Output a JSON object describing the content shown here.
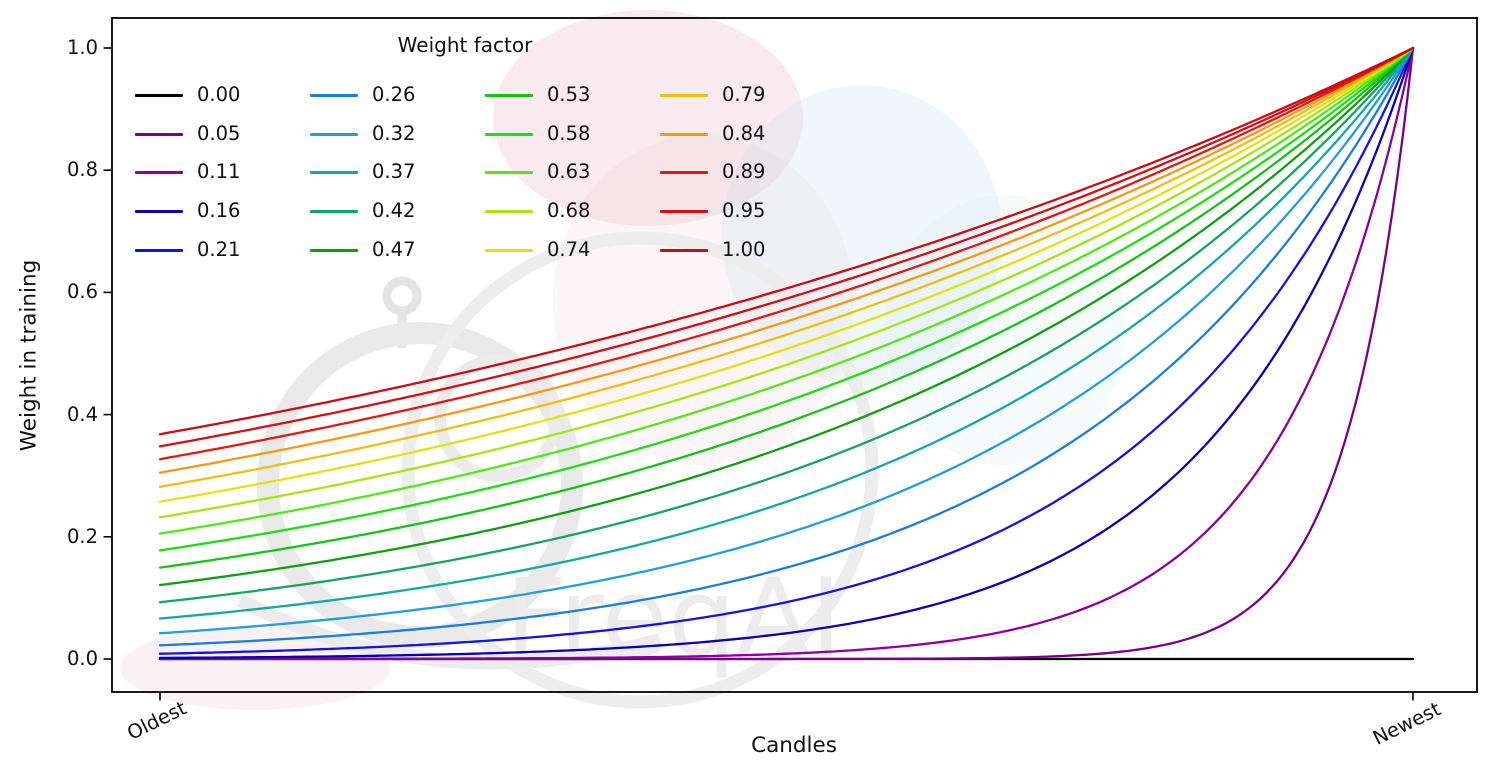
{
  "figure": {
    "watermark": {
      "text": "FreqAI"
    },
    "legend": {
      "title": "Weight factor"
    },
    "y_axis": {
      "label": "Weight in training",
      "ticks": [
        "0.0",
        "0.2",
        "0.4",
        "0.6",
        "0.8",
        "1.0"
      ],
      "tick_values": [
        0.0,
        0.2,
        0.4,
        0.6,
        0.8,
        1.0
      ]
    },
    "x_axis": {
      "label": "Candles",
      "ticks": [
        "Oldest",
        "Newest"
      ]
    }
  },
  "chart_data": {
    "type": "line",
    "title": "",
    "xlabel": "Candles",
    "ylabel": "Weight in training",
    "x_tick_labels": [
      "Oldest",
      "Newest"
    ],
    "x_range": [
      0,
      1
    ],
    "ylim": [
      -0.05,
      1.05
    ],
    "yticks": [
      0.0,
      0.2,
      0.4,
      0.6,
      0.8,
      1.0
    ],
    "grid": false,
    "legend_title": "Weight factor",
    "legend_position": "upper left",
    "legend_columns": 4,
    "formula": "weight(x) = exp(-(1 - x) / weight_factor); x=0 oldest candle, x=1 newest candle; weight_factor=0 gives flat 0 weight",
    "endpoint_values_at_oldest": [
      0.0,
      0.0,
      0.0001,
      0.002,
      0.009,
      0.022,
      0.042,
      0.066,
      0.093,
      0.121,
      0.15,
      0.178,
      0.206,
      0.232,
      0.258,
      0.282,
      0.305,
      0.327,
      0.348,
      0.368
    ],
    "endpoint_value_at_newest": 1.0,
    "series": [
      {
        "name": "0.00",
        "weight_factor": 0.0,
        "color": "#000000"
      },
      {
        "name": "0.05",
        "weight_factor": 0.05263,
        "color": "#7a008b"
      },
      {
        "name": "0.11",
        "weight_factor": 0.10526,
        "color": "#8c009e"
      },
      {
        "name": "0.16",
        "weight_factor": 0.15789,
        "color": "#0d00b0"
      },
      {
        "name": "0.21",
        "weight_factor": 0.21053,
        "color": "#1414dd"
      },
      {
        "name": "0.26",
        "weight_factor": 0.26316,
        "color": "#1b7edb"
      },
      {
        "name": "0.32",
        "weight_factor": 0.31579,
        "color": "#229edb"
      },
      {
        "name": "0.37",
        "weight_factor": 0.36842,
        "color": "#12a9a4"
      },
      {
        "name": "0.42",
        "weight_factor": 0.42105,
        "color": "#16a55c"
      },
      {
        "name": "0.47",
        "weight_factor": 0.47368,
        "color": "#0da00d"
      },
      {
        "name": "0.53",
        "weight_factor": 0.52632,
        "color": "#17c217"
      },
      {
        "name": "0.58",
        "weight_factor": 0.57895,
        "color": "#1edd10"
      },
      {
        "name": "0.63",
        "weight_factor": 0.63158,
        "color": "#52e816"
      },
      {
        "name": "0.68",
        "weight_factor": 0.68421,
        "color": "#a8e414"
      },
      {
        "name": "0.74",
        "weight_factor": 0.73684,
        "color": "#e4e112"
      },
      {
        "name": "0.79",
        "weight_factor": 0.78947,
        "color": "#f2bc10"
      },
      {
        "name": "0.84",
        "weight_factor": 0.84211,
        "color": "#f49a12"
      },
      {
        "name": "0.89",
        "weight_factor": 0.89474,
        "color": "#e4180f"
      },
      {
        "name": "0.95",
        "weight_factor": 0.94737,
        "color": "#d31016"
      },
      {
        "name": "1.00",
        "weight_factor": 1.0,
        "color": "#ca0d13"
      }
    ]
  }
}
